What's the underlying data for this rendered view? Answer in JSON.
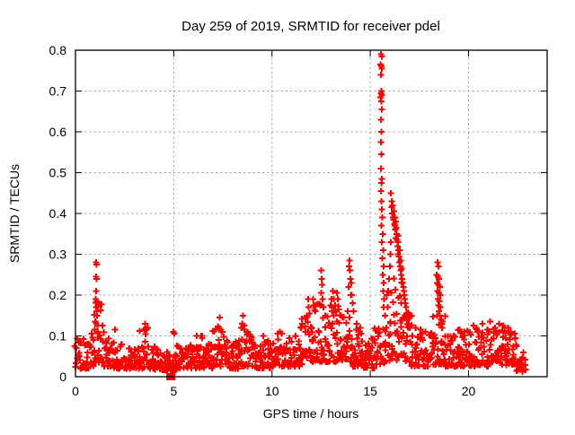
{
  "chart_data": {
    "type": "scatter",
    "title": "Day 259 of 2019, SRMTID for receiver pdel",
    "xlabel": "GPS time / hours",
    "ylabel": "SRMTID / TECUs",
    "xlim": [
      0,
      24
    ],
    "ylim": [
      0,
      0.8
    ],
    "xticks": [
      0,
      5,
      10,
      15,
      20
    ],
    "xtick_labels": [
      "0",
      "5",
      "10",
      "15",
      "20"
    ],
    "yticks": [
      0,
      0.1,
      0.2,
      0.3,
      0.4,
      0.5,
      0.6,
      0.7,
      0.8
    ],
    "ytick_labels": [
      "0",
      "0.1",
      "0.2",
      "0.3",
      "0.4",
      "0.5",
      "0.6",
      "0.7",
      "0.8"
    ],
    "grid": "dashed",
    "legend": "none",
    "marker": "plus",
    "colors": {
      "marker": "#ff0000",
      "grid": "#9b9b9b",
      "axis": "#000000",
      "text": "#000000",
      "background": "#ffffff"
    },
    "band_step": 0.04,
    "band_segments": [
      [
        0.0,
        0.8,
        0.02,
        0.095
      ],
      [
        0.8,
        0.95,
        0.025,
        0.11
      ],
      [
        0.95,
        1.45,
        0.035,
        0.185
      ],
      [
        1.45,
        1.75,
        0.025,
        0.1
      ],
      [
        1.75,
        2.1,
        0.02,
        0.09
      ],
      [
        2.1,
        3.3,
        0.02,
        0.08
      ],
      [
        3.3,
        3.7,
        0.02,
        0.12
      ],
      [
        3.7,
        4.4,
        0.018,
        0.075
      ],
      [
        4.4,
        5.15,
        0.015,
        0.06
      ],
      [
        5.15,
        6.2,
        0.02,
        0.08
      ],
      [
        6.2,
        6.6,
        0.022,
        0.1
      ],
      [
        6.6,
        7.0,
        0.02,
        0.09
      ],
      [
        7.0,
        7.6,
        0.025,
        0.125
      ],
      [
        7.6,
        8.3,
        0.02,
        0.09
      ],
      [
        8.3,
        9.0,
        0.025,
        0.125
      ],
      [
        9.0,
        10.3,
        0.02,
        0.09
      ],
      [
        10.3,
        10.7,
        0.025,
        0.11
      ],
      [
        10.7,
        11.4,
        0.025,
        0.1
      ],
      [
        11.4,
        12.0,
        0.03,
        0.15
      ],
      [
        12.0,
        12.65,
        0.035,
        0.18
      ],
      [
        12.65,
        13.0,
        0.03,
        0.15
      ],
      [
        13.0,
        13.5,
        0.035,
        0.19
      ],
      [
        13.5,
        14.1,
        0.03,
        0.15
      ],
      [
        14.1,
        14.7,
        0.025,
        0.12
      ],
      [
        14.7,
        15.25,
        0.02,
        0.1
      ],
      [
        15.25,
        15.8,
        0.03,
        0.13
      ],
      [
        15.8,
        16.1,
        0.04,
        0.2
      ],
      [
        16.1,
        16.6,
        0.04,
        0.26
      ],
      [
        16.6,
        17.1,
        0.035,
        0.17
      ],
      [
        17.1,
        18.2,
        0.025,
        0.115
      ],
      [
        18.2,
        18.8,
        0.03,
        0.15
      ],
      [
        18.8,
        19.4,
        0.025,
        0.1
      ],
      [
        19.4,
        20.1,
        0.025,
        0.115
      ],
      [
        20.1,
        21.0,
        0.025,
        0.12
      ],
      [
        21.0,
        21.9,
        0.03,
        0.13
      ],
      [
        21.9,
        22.45,
        0.025,
        0.11
      ],
      [
        22.45,
        22.9,
        0.012,
        0.06
      ]
    ],
    "points": [
      [
        1.05,
        0.28
      ],
      [
        1.07,
        0.275
      ],
      [
        1.04,
        0.245
      ],
      [
        1.08,
        0.24
      ],
      [
        1.06,
        0.21
      ],
      [
        1.03,
        0.19
      ],
      [
        1.09,
        0.185
      ],
      [
        1.05,
        0.17
      ],
      [
        1.08,
        0.16
      ],
      [
        1.1,
        0.15
      ],
      [
        1.0,
        0.135
      ],
      [
        1.12,
        0.125
      ],
      [
        1.15,
        0.11
      ],
      [
        0.98,
        0.115
      ],
      [
        2.0,
        0.115
      ],
      [
        3.5,
        0.115
      ],
      [
        3.55,
        0.13
      ],
      [
        4.98,
        0.11
      ],
      [
        5.02,
        0.105
      ],
      [
        6.4,
        0.1
      ],
      [
        6.45,
        0.095
      ],
      [
        7.28,
        0.12
      ],
      [
        7.33,
        0.145
      ],
      [
        7.38,
        0.115
      ],
      [
        8.48,
        0.13
      ],
      [
        8.53,
        0.15
      ],
      [
        8.58,
        0.125
      ],
      [
        8.75,
        0.11
      ],
      [
        9.55,
        0.1
      ],
      [
        10.4,
        0.11
      ],
      [
        10.5,
        0.105
      ],
      [
        11.2,
        0.1
      ],
      [
        11.5,
        0.12
      ],
      [
        11.55,
        0.13
      ],
      [
        11.78,
        0.15
      ],
      [
        11.83,
        0.19
      ],
      [
        11.86,
        0.17
      ],
      [
        11.9,
        0.155
      ],
      [
        12.08,
        0.19
      ],
      [
        12.12,
        0.175
      ],
      [
        12.2,
        0.16
      ],
      [
        12.45,
        0.175
      ],
      [
        12.5,
        0.26
      ],
      [
        12.52,
        0.24
      ],
      [
        12.55,
        0.225
      ],
      [
        12.5,
        0.205
      ],
      [
        12.57,
        0.19
      ],
      [
        12.62,
        0.17
      ],
      [
        12.7,
        0.15
      ],
      [
        13.05,
        0.16
      ],
      [
        13.1,
        0.21
      ],
      [
        13.15,
        0.19
      ],
      [
        13.2,
        0.175
      ],
      [
        13.3,
        0.205
      ],
      [
        13.35,
        0.19
      ],
      [
        13.4,
        0.165
      ],
      [
        13.5,
        0.15
      ],
      [
        13.85,
        0.16
      ],
      [
        13.9,
        0.22
      ],
      [
        13.93,
        0.27
      ],
      [
        13.95,
        0.285
      ],
      [
        13.97,
        0.26
      ],
      [
        13.99,
        0.24
      ],
      [
        14.0,
        0.2
      ],
      [
        14.03,
        0.23
      ],
      [
        14.06,
        0.2
      ],
      [
        14.1,
        0.18
      ],
      [
        14.15,
        0.16
      ],
      [
        14.3,
        0.13
      ],
      [
        14.5,
        0.12
      ],
      [
        15.55,
        0.79
      ],
      [
        15.58,
        0.785
      ],
      [
        15.53,
        0.765
      ],
      [
        15.56,
        0.76
      ],
      [
        15.59,
        0.755
      ],
      [
        15.54,
        0.74
      ],
      [
        15.57,
        0.7
      ],
      [
        15.55,
        0.695
      ],
      [
        15.59,
        0.69
      ],
      [
        15.53,
        0.685
      ],
      [
        15.56,
        0.675
      ],
      [
        15.58,
        0.655
      ],
      [
        15.55,
        0.63
      ],
      [
        15.57,
        0.6
      ],
      [
        15.54,
        0.575
      ],
      [
        15.57,
        0.545
      ],
      [
        15.55,
        0.51
      ],
      [
        15.58,
        0.485
      ],
      [
        15.56,
        0.475
      ],
      [
        15.54,
        0.455
      ],
      [
        15.57,
        0.43
      ],
      [
        15.59,
        0.41
      ],
      [
        15.61,
        0.39
      ],
      [
        15.56,
        0.37
      ],
      [
        15.63,
        0.35
      ],
      [
        15.59,
        0.33
      ],
      [
        15.65,
        0.31
      ],
      [
        15.61,
        0.29
      ],
      [
        15.67,
        0.27
      ],
      [
        15.63,
        0.25
      ],
      [
        15.69,
        0.23
      ],
      [
        15.66,
        0.21
      ],
      [
        15.71,
        0.19
      ],
      [
        15.68,
        0.17
      ],
      [
        15.74,
        0.15
      ],
      [
        15.9,
        0.21
      ],
      [
        15.95,
        0.24
      ],
      [
        16.0,
        0.27
      ],
      [
        16.02,
        0.3
      ],
      [
        16.05,
        0.33
      ],
      [
        16.05,
        0.45
      ],
      [
        16.08,
        0.43
      ],
      [
        16.1,
        0.415
      ],
      [
        16.14,
        0.42
      ],
      [
        16.12,
        0.4
      ],
      [
        16.16,
        0.39
      ],
      [
        16.2,
        0.405
      ],
      [
        16.18,
        0.385
      ],
      [
        16.22,
        0.375
      ],
      [
        16.26,
        0.39
      ],
      [
        16.24,
        0.37
      ],
      [
        16.28,
        0.36
      ],
      [
        16.3,
        0.38
      ],
      [
        16.32,
        0.365
      ],
      [
        16.34,
        0.35
      ],
      [
        16.3,
        0.34
      ],
      [
        16.36,
        0.335
      ],
      [
        16.4,
        0.345
      ],
      [
        16.38,
        0.32
      ],
      [
        16.42,
        0.33
      ],
      [
        16.44,
        0.31
      ],
      [
        16.4,
        0.3
      ],
      [
        16.46,
        0.295
      ],
      [
        16.5,
        0.31
      ],
      [
        16.48,
        0.28
      ],
      [
        16.52,
        0.27
      ],
      [
        16.55,
        0.285
      ],
      [
        16.54,
        0.26
      ],
      [
        16.58,
        0.25
      ],
      [
        16.6,
        0.265
      ],
      [
        16.62,
        0.24
      ],
      [
        16.65,
        0.23
      ],
      [
        16.68,
        0.22
      ],
      [
        16.7,
        0.21
      ],
      [
        16.72,
        0.2
      ],
      [
        16.75,
        0.19
      ],
      [
        16.78,
        0.18
      ],
      [
        16.82,
        0.17
      ],
      [
        16.85,
        0.155
      ],
      [
        16.9,
        0.14
      ],
      [
        16.95,
        0.13
      ],
      [
        17.0,
        0.12
      ],
      [
        18.42,
        0.28
      ],
      [
        18.46,
        0.27
      ],
      [
        18.38,
        0.25
      ],
      [
        18.44,
        0.245
      ],
      [
        18.5,
        0.24
      ],
      [
        18.4,
        0.23
      ],
      [
        18.47,
        0.225
      ],
      [
        18.53,
        0.22
      ],
      [
        18.42,
        0.21
      ],
      [
        18.49,
        0.205
      ],
      [
        18.55,
        0.2
      ],
      [
        18.44,
        0.19
      ],
      [
        18.51,
        0.185
      ],
      [
        18.46,
        0.175
      ],
      [
        18.57,
        0.17
      ],
      [
        18.48,
        0.16
      ],
      [
        18.54,
        0.15
      ],
      [
        18.6,
        0.14
      ],
      [
        18.63,
        0.13
      ],
      [
        18.66,
        0.12
      ],
      [
        17.3,
        0.12
      ],
      [
        17.55,
        0.115
      ],
      [
        17.8,
        0.11
      ],
      [
        19.55,
        0.115
      ],
      [
        19.8,
        0.11
      ],
      [
        20.25,
        0.125
      ],
      [
        20.45,
        0.11
      ],
      [
        20.7,
        0.13
      ],
      [
        20.95,
        0.115
      ],
      [
        21.1,
        0.135
      ],
      [
        21.35,
        0.12
      ],
      [
        21.55,
        0.13
      ],
      [
        21.75,
        0.125
      ],
      [
        22.0,
        0.12
      ],
      [
        22.15,
        0.11
      ],
      [
        22.35,
        0.105
      ]
    ],
    "outlier_square": [
      4.85,
      0.0
    ]
  }
}
